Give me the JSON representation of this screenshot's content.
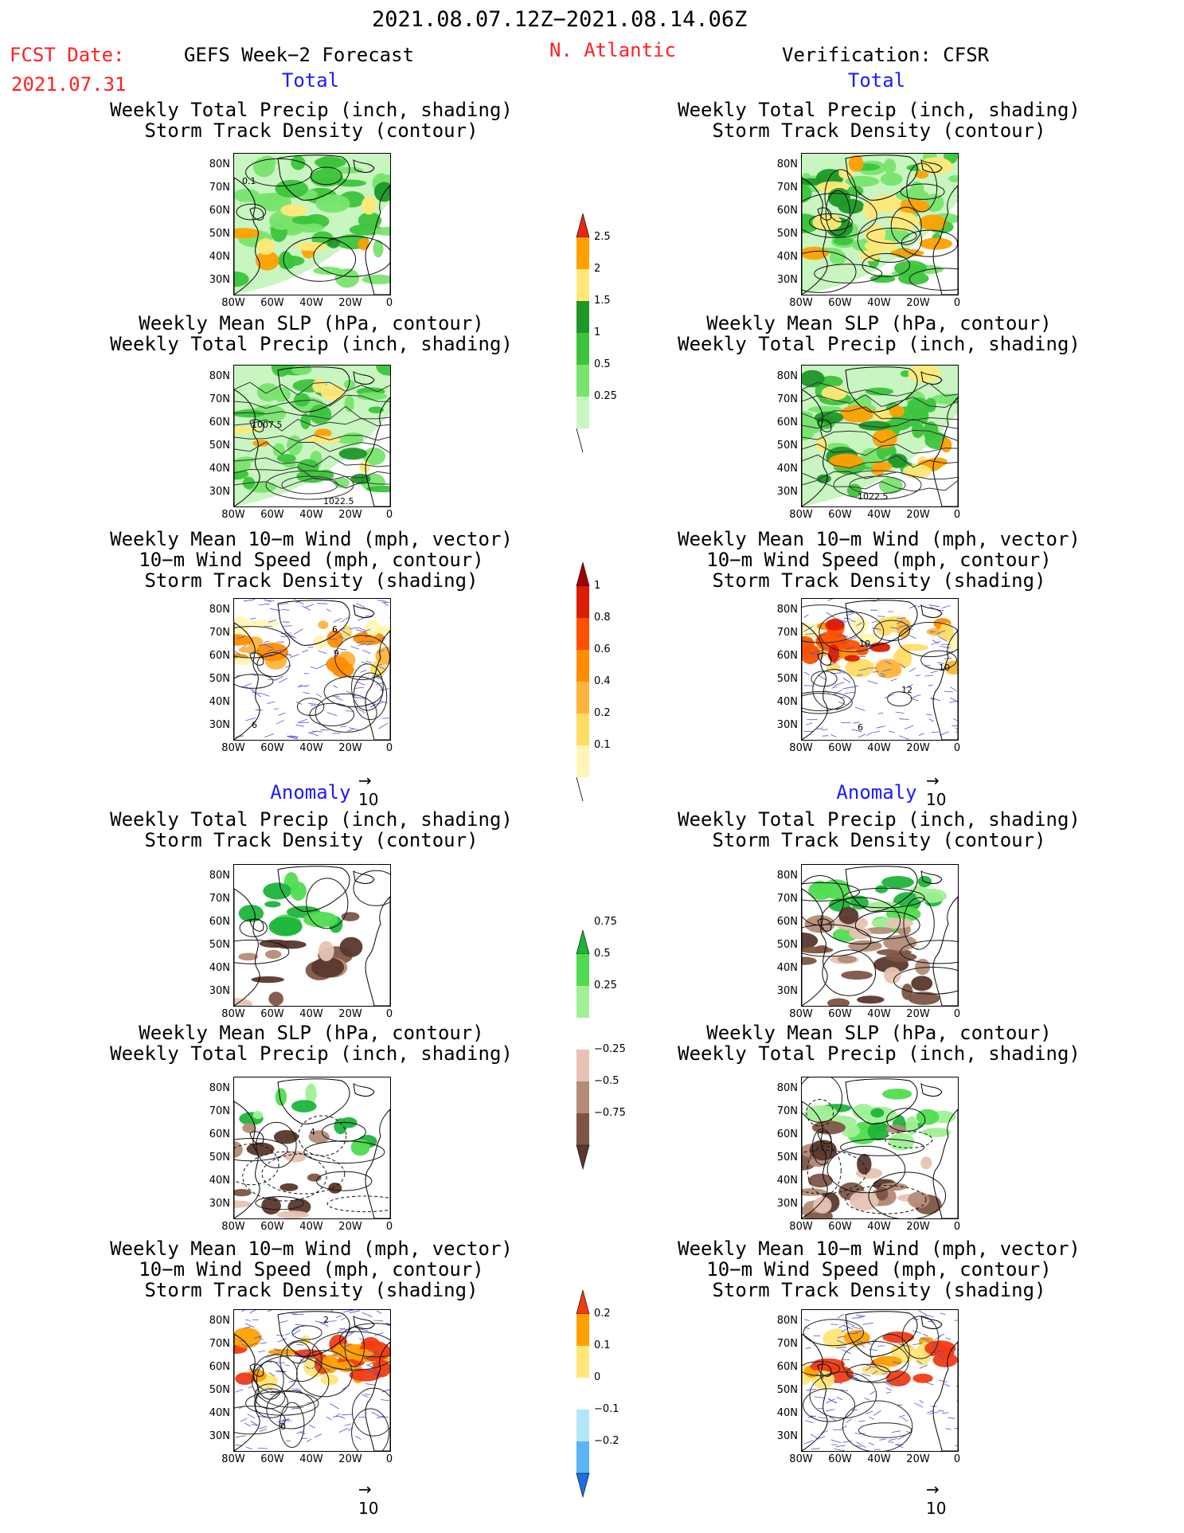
{
  "header": {
    "date_range": "2021.08.07.12Z−2021.08.14.06Z",
    "region": "N. Atlantic",
    "fcst_label": "FCST Date:",
    "fcst_date": "2021.07.31",
    "left_title": "GEFS Week−2 Forecast",
    "right_title": "Verification: CFSR"
  },
  "sections": {
    "total": "Total",
    "anomaly": "Anomaly"
  },
  "panel_titles": {
    "precip_storm": [
      "Weekly Total Precip (inch, shading)",
      "Storm Track Density (contour)"
    ],
    "slp_precip": [
      "Weekly Mean SLP (hPa, contour)",
      "Weekly Total Precip (inch, shading)"
    ],
    "wind_storm": [
      "Weekly Mean 10−m Wind (mph, vector)",
      "10−m Wind Speed (mph, contour)",
      "Storm Track Density (shading)"
    ]
  },
  "map_axes": {
    "lat_labels": [
      "80N",
      "70N",
      "60N",
      "50N",
      "40N",
      "30N"
    ],
    "lon_labels": [
      "80W",
      "60W",
      "40W",
      "20W",
      "0"
    ]
  },
  "vector_reference": "10",
  "map_contour_labels": {
    "storm_forecast": "0.1",
    "slp_forecast_a": "1007.5",
    "slp_forecast_b": "1022.5",
    "slp_verif": "1022.5",
    "wind_forecast_a": "6",
    "wind_forecast_b": "9",
    "wind_forecast_c": "6",
    "wind_verif_a": "10",
    "wind_verif_b": "10",
    "wind_verif_c": "12",
    "wind_verif_d": "6",
    "slp_anom_forecast": "4",
    "wind_anom_forecast_a": "2",
    "wind_anom_forecast_b": "0"
  },
  "colors": {
    "precip_total": [
      "#c8f5c0",
      "#78e46e",
      "#3cc43c",
      "#1e9628",
      "#ffe878",
      "#ffa000",
      "#e62814"
    ],
    "storm_density": [
      "#fff5b4",
      "#ffdc64",
      "#ffb43c",
      "#ff8c00",
      "#ff5000",
      "#dc1e00",
      "#a00000"
    ],
    "precip_anom_pos": [
      "#a0f096",
      "#50dc50",
      "#1eb43c"
    ],
    "precip_anom_neg": [
      "#e6c3b4",
      "#b48c78",
      "#7d5546",
      "#5a372d"
    ],
    "storm_anom": [
      "#1e6ee6",
      "#5ab4f5",
      "#b4e6fa",
      "#ffe678",
      "#ffa000",
      "#f03c14"
    ],
    "title_red": "#ff2020",
    "title_blue": "#1a1aff"
  },
  "chart_data": [
    {
      "type": "heatmap",
      "name": "precip_total_colorbar",
      "ticks": [
        "0.25",
        "0.5",
        "1",
        "1.5",
        "2",
        "2.5"
      ],
      "units": "inch"
    },
    {
      "type": "heatmap",
      "name": "storm_density_colorbar",
      "ticks": [
        "0.1",
        "0.2",
        "0.4",
        "0.6",
        "0.8",
        "1"
      ]
    },
    {
      "type": "heatmap",
      "name": "precip_anomaly_colorbar",
      "ticks": [
        "−0.75",
        "−0.5",
        "−0.25",
        "0.25",
        "0.5",
        "0.75"
      ],
      "units": "inch"
    },
    {
      "type": "heatmap",
      "name": "storm_anomaly_colorbar",
      "ticks": [
        "−0.2",
        "−0.1",
        "0",
        "0.1",
        "0.2"
      ]
    }
  ]
}
